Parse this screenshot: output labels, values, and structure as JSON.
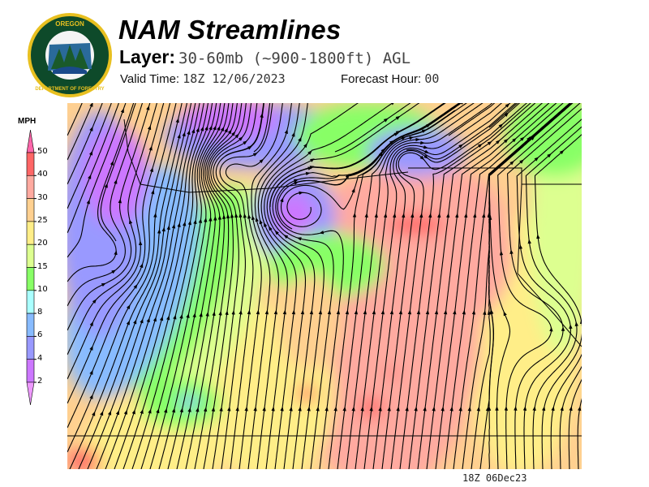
{
  "logo": {
    "text_top": "OREGON",
    "text_bottom": "DEPARTMENT OF FORESTRY"
  },
  "header": {
    "title": "NAM Streamlines",
    "layer_label": "Layer:",
    "layer_value": "30-60mb (~900-1800ft) AGL",
    "valid_label": "Valid Time:",
    "valid_value": "18Z 12/06/2023",
    "forecast_label": "Forecast Hour:",
    "forecast_value": "00"
  },
  "legend": {
    "unit": "MPH",
    "levels": [
      "50",
      "40",
      "30",
      "25",
      "20",
      "15",
      "10",
      "8",
      "6",
      "4",
      "2"
    ],
    "colors": [
      "#ff66aa",
      "#ff6666",
      "#ffaaa0",
      "#ffd090",
      "#ffee88",
      "#ddff90",
      "#88ff66",
      "#aaffff",
      "#88bbff",
      "#9999ff",
      "#cc77ff",
      "#ee99ff"
    ]
  },
  "footer": {
    "stamp": "18Z 06Dec23"
  }
}
